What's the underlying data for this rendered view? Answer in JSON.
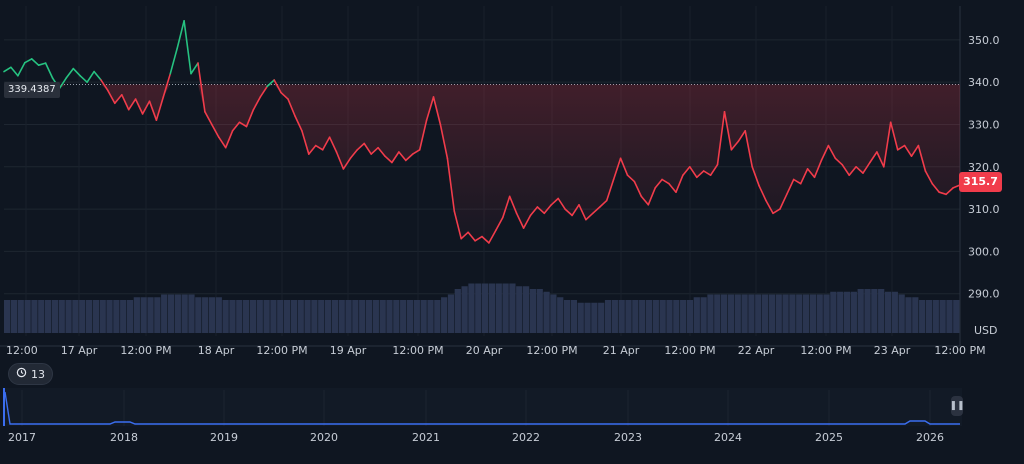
{
  "chart_data": {
    "type": "line",
    "last_price_label": "315.7",
    "reference_price_label": "339.4387",
    "reference_price": 339.4387,
    "currency": "USD",
    "y_ticks": [
      "350.0",
      "340.0",
      "330.0",
      "320.0",
      "310.0",
      "300.0",
      "290.0"
    ],
    "y_tick_values": [
      350,
      340,
      330,
      320,
      310,
      300,
      290
    ],
    "ylim": [
      280,
      358
    ],
    "x_ticks": [
      "12:00",
      "17 Apr",
      "12:00 PM",
      "18 Apr",
      "12:00 PM",
      "19 Apr",
      "12:00 PM",
      "20 Apr",
      "12:00 PM",
      "21 Apr",
      "12:00 PM",
      "22 Apr",
      "12:00 PM",
      "23 Apr",
      "12:00 PM"
    ],
    "series": [
      {
        "values": [
          342.5,
          343.5,
          341.5,
          344.6,
          345.5,
          344.0,
          344.5,
          341.0,
          338.5,
          341.0,
          343.2,
          341.5,
          340.0,
          342.5,
          340.5,
          338.0,
          335.0,
          337.0,
          333.5,
          336.0,
          332.5,
          335.5,
          331.0,
          336.5,
          342.0,
          348.0,
          354.5,
          342.0,
          344.5,
          333.0,
          330.0,
          327.0,
          324.5,
          328.5,
          330.5,
          329.5,
          333.5,
          336.5,
          339.0,
          340.5,
          337.5,
          336.0,
          332.0,
          328.5,
          323.0,
          325.0,
          324.0,
          327.0,
          323.5,
          319.5,
          322.0,
          324.0,
          325.5,
          323.0,
          324.5,
          322.5,
          321.0,
          323.5,
          321.5,
          323.0,
          324.0,
          331.0,
          336.5,
          330.0,
          322.0,
          309.5,
          303.0,
          304.5,
          302.5,
          303.5,
          302.0,
          305.0,
          308.0,
          313.0,
          309.0,
          305.5,
          308.5,
          310.5,
          309.0,
          311.0,
          312.5,
          310.0,
          308.5,
          311.0,
          307.5,
          309.0,
          310.5,
          312.0,
          317.0,
          322.0,
          318.0,
          316.5,
          313.0,
          311.0,
          315.0,
          317.0,
          316.0,
          314.0,
          318.0,
          320.0,
          317.5,
          319.0,
          318.0,
          320.5,
          333.0,
          324.0,
          326.0,
          328.5,
          320.0,
          315.5,
          312.0,
          309.0,
          310.0,
          313.5,
          317.0,
          316.0,
          319.5,
          317.5,
          321.5,
          325.0,
          322.0,
          320.5,
          318.0,
          320.0,
          318.5,
          321.0,
          323.5,
          320.0,
          330.5,
          324.0,
          325.0,
          322.5,
          325.0,
          319.0,
          316.0,
          314.0,
          313.5,
          315.0,
          315.7
        ]
      }
    ],
    "volume": [
      12,
      12,
      12,
      12,
      12,
      12,
      12,
      12,
      12,
      12,
      12,
      12,
      12,
      12,
      12,
      12,
      12,
      12,
      12,
      13,
      13,
      13,
      13,
      14,
      14,
      14,
      14,
      14,
      13,
      13,
      13,
      13,
      12,
      12,
      12,
      12,
      12,
      12,
      12,
      12,
      12,
      12,
      12,
      12,
      12,
      12,
      12,
      12,
      12,
      12,
      12,
      12,
      12,
      12,
      12,
      12,
      12,
      12,
      12,
      12,
      12,
      12,
      12,
      12,
      13,
      14,
      16,
      17,
      18,
      18,
      18,
      18,
      18,
      18,
      18,
      17,
      17,
      16,
      16,
      15,
      14,
      13,
      12,
      12,
      11,
      11,
      11,
      11,
      12,
      12,
      12,
      12,
      12,
      12,
      12,
      12,
      12,
      12,
      12,
      12,
      12,
      13,
      13,
      14,
      14,
      14,
      14,
      14,
      14,
      14,
      14,
      14,
      14,
      14,
      14,
      14,
      14,
      14,
      14,
      14,
      14,
      15,
      15,
      15,
      15,
      16,
      16,
      16,
      16,
      15,
      15,
      14,
      13,
      13,
      12,
      12,
      12,
      12,
      12,
      12
    ]
  },
  "navigator": {
    "years": [
      "2017",
      "2018",
      "2019",
      "2020",
      "2021",
      "2022",
      "2023",
      "2024",
      "2025",
      "2026"
    ],
    "history_count": "13",
    "history_icon": "history-icon",
    "handle_icon": "pause-handle-icon"
  },
  "colors": {
    "up": "#26c281",
    "down": "#f13c4b",
    "volume": "#2a3550",
    "navigator_line": "#3b6ef0",
    "grid": "#1e2631",
    "background": "#0f1621"
  }
}
